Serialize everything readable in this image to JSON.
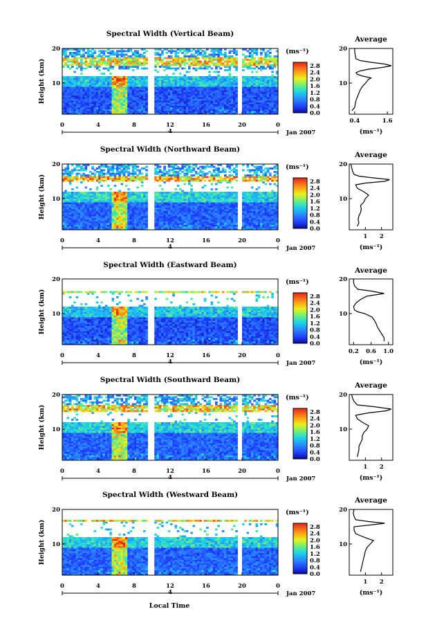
{
  "figure": {
    "x_axis_label": "Local Time",
    "y_axis_label": "Height (km)",
    "date_label": "Jan 2007",
    "day_label": "4",
    "colorbar_unit": "(ms⁻¹)",
    "profile_title": "Average",
    "profile_xlabel": "(ms⁻¹)"
  },
  "chart_data": [
    {
      "type": "heatmap",
      "title": "Spectral Width (Vertical Beam)",
      "xlabel": "Local Time",
      "ylabel": "Height (km)",
      "x_ticks": [
        "0",
        "4",
        "8",
        "12",
        "16",
        "20",
        "0"
      ],
      "x_range_hours": [
        0,
        24
      ],
      "ylim_km": [
        1,
        20
      ],
      "y_ticks": [
        "10",
        "20"
      ],
      "colorbar": {
        "unit": "(ms⁻¹)",
        "ticks": [
          "0.0",
          "0.4",
          "0.8",
          "1.2",
          "1.6",
          "2.0",
          "2.4",
          "2.8"
        ],
        "range": [
          0,
          3.0
        ]
      },
      "data_gaps_hours": [
        [
          9.5,
          10.2
        ],
        [
          19.5,
          20.0
        ]
      ],
      "features": {
        "tropopause_layer_km": [
          15,
          17.5
        ],
        "tropopause_width": 2.6,
        "no_echo_km": [
          12,
          14
        ],
        "background_width": 0.5,
        "convection_hours": [
          5.5,
          7
        ],
        "convection_top_km": 12
      }
    },
    {
      "type": "line",
      "title": "Average",
      "xlabel": "(ms⁻¹)",
      "ylabel": "",
      "x_ticks": [
        "0.4",
        "1.6"
      ],
      "xlim": [
        0.2,
        1.8
      ],
      "ylim": [
        1,
        20
      ],
      "y_ticks": [
        "10",
        "20"
      ],
      "profile": [
        [
          0.3,
          2
        ],
        [
          0.4,
          3
        ],
        [
          0.42,
          4
        ],
        [
          0.45,
          5
        ],
        [
          0.5,
          6
        ],
        [
          0.55,
          7
        ],
        [
          0.6,
          8
        ],
        [
          0.68,
          9
        ],
        [
          0.8,
          10
        ],
        [
          0.9,
          11
        ],
        [
          1.0,
          11.5
        ],
        [
          0.7,
          12
        ],
        [
          0.5,
          12.5
        ],
        [
          0.45,
          13
        ],
        [
          0.6,
          13.5
        ],
        [
          0.9,
          14
        ],
        [
          1.4,
          14.5
        ],
        [
          1.75,
          15
        ],
        [
          1.5,
          15.5
        ],
        [
          1.0,
          16
        ],
        [
          0.6,
          16.5
        ],
        [
          0.45,
          17
        ],
        [
          0.42,
          18
        ],
        [
          0.4,
          19
        ],
        [
          0.4,
          20
        ]
      ]
    },
    {
      "type": "heatmap",
      "title": "Spectral Width (Northward Beam)",
      "xlabel": "Local Time",
      "ylabel": "Height (km)",
      "x_ticks": [
        "0",
        "4",
        "8",
        "12",
        "16",
        "20",
        "0"
      ],
      "x_range_hours": [
        0,
        24
      ],
      "ylim_km": [
        1,
        20
      ],
      "y_ticks": [
        "10",
        "20"
      ],
      "colorbar": {
        "unit": "(ms⁻¹)",
        "ticks": [
          "0.0",
          "0.4",
          "0.8",
          "1.2",
          "1.6",
          "2.0",
          "2.4",
          "2.8"
        ],
        "range": [
          0,
          3.0
        ]
      },
      "data_gaps_hours": [
        [
          9.5,
          10.2
        ],
        [
          19.5,
          20.0
        ]
      ],
      "features": {
        "tropopause_layer_km": [
          15,
          16.5
        ],
        "tropopause_width": 2.8,
        "no_echo_km": [
          12,
          14.8
        ],
        "background_width": 0.6,
        "convection_hours": [
          5.5,
          7
        ],
        "convection_top_km": 12
      }
    },
    {
      "type": "line",
      "title": "Average",
      "xlabel": "(ms⁻¹)",
      "ylabel": "",
      "x_ticks": [
        "1",
        "2"
      ],
      "xlim": [
        0,
        2.7
      ],
      "ylim": [
        1,
        20
      ],
      "y_ticks": [
        "10",
        "20"
      ],
      "profile": [
        [
          0.5,
          2
        ],
        [
          0.6,
          3
        ],
        [
          0.55,
          4
        ],
        [
          0.6,
          5
        ],
        [
          0.7,
          6
        ],
        [
          0.75,
          7
        ],
        [
          0.7,
          8
        ],
        [
          0.9,
          9
        ],
        [
          1.0,
          10
        ],
        [
          1.2,
          11
        ],
        [
          0.9,
          12
        ],
        [
          0.5,
          13
        ],
        [
          0.4,
          14
        ],
        [
          1.0,
          14.5
        ],
        [
          2.2,
          15
        ],
        [
          2.5,
          15.5
        ],
        [
          1.5,
          16
        ],
        [
          0.6,
          16.5
        ],
        [
          0.3,
          17
        ],
        [
          0.2,
          18
        ],
        [
          0.15,
          19
        ],
        [
          0.1,
          20
        ]
      ]
    },
    {
      "type": "heatmap",
      "title": "Spectral Width (Eastward Beam)",
      "xlabel": "Local Time",
      "ylabel": "Height (km)",
      "x_ticks": [
        "0",
        "4",
        "8",
        "12",
        "16",
        "20",
        "0"
      ],
      "x_range_hours": [
        0,
        24
      ],
      "ylim_km": [
        1,
        20
      ],
      "y_ticks": [
        "10",
        "20"
      ],
      "colorbar": {
        "unit": "(ms⁻¹)",
        "ticks": [
          "0.0",
          "0.4",
          "0.8",
          "1.2",
          "1.6",
          "2.0",
          "2.4",
          "2.8"
        ],
        "range": [
          0,
          3.0
        ]
      },
      "data_gaps_hours": [
        [
          9.5,
          10.2
        ],
        [
          19.5,
          20.0
        ]
      ],
      "features": {
        "tropopause_layer_km": [
          16,
          16.5
        ],
        "tropopause_width": 2.4,
        "no_echo_km": [
          12,
          20
        ],
        "background_width": 0.5,
        "convection_hours": [
          5.5,
          7
        ],
        "convection_top_km": 12
      }
    },
    {
      "type": "line",
      "title": "Average",
      "xlabel": "(ms⁻¹)",
      "ylabel": "",
      "x_ticks": [
        "0.2",
        "0.6",
        "1.0"
      ],
      "xlim": [
        0.1,
        1.1
      ],
      "ylim": [
        1,
        20
      ],
      "y_ticks": [
        "10",
        "20"
      ],
      "profile": [
        [
          0.9,
          2
        ],
        [
          0.9,
          3
        ],
        [
          0.85,
          4
        ],
        [
          0.8,
          5
        ],
        [
          0.75,
          6
        ],
        [
          0.72,
          7
        ],
        [
          0.68,
          8
        ],
        [
          0.62,
          9
        ],
        [
          0.45,
          10
        ],
        [
          0.3,
          10.5
        ],
        [
          0.22,
          11
        ],
        [
          0.2,
          12
        ],
        [
          0.25,
          13
        ],
        [
          0.35,
          14
        ],
        [
          0.5,
          15
        ],
        [
          0.9,
          15.8
        ],
        [
          0.6,
          16.5
        ],
        [
          0.3,
          17
        ],
        [
          0.22,
          18
        ],
        [
          0.2,
          19
        ],
        [
          0.2,
          20
        ]
      ]
    },
    {
      "type": "heatmap",
      "title": "Spectral Width (Southward Beam)",
      "xlabel": "Local Time",
      "ylabel": "Height (km)",
      "x_ticks": [
        "0",
        "4",
        "8",
        "12",
        "16",
        "20",
        "0"
      ],
      "x_range_hours": [
        0,
        24
      ],
      "ylim_km": [
        1,
        20
      ],
      "y_ticks": [
        "10",
        "20"
      ],
      "colorbar": {
        "unit": "(ms⁻¹)",
        "ticks": [
          "0.0",
          "0.4",
          "0.8",
          "1.2",
          "1.6",
          "2.0",
          "2.4",
          "2.8"
        ],
        "range": [
          0,
          3.0
        ]
      },
      "data_gaps_hours": [
        [
          9.5,
          10.2
        ],
        [
          19.5,
          20.0
        ]
      ],
      "features": {
        "tropopause_layer_km": [
          15.2,
          16.8
        ],
        "tropopause_width": 2.7,
        "no_echo_km": [
          12,
          15
        ],
        "background_width": 0.6,
        "convection_hours": [
          5.5,
          7
        ],
        "convection_top_km": 12
      }
    },
    {
      "type": "line",
      "title": "Average",
      "xlabel": "(ms⁻¹)",
      "ylabel": "",
      "x_ticks": [
        "1",
        "2"
      ],
      "xlim": [
        0,
        2.7
      ],
      "ylim": [
        1,
        20
      ],
      "y_ticks": [
        "10",
        "20"
      ],
      "profile": [
        [
          0.5,
          2
        ],
        [
          0.55,
          3
        ],
        [
          0.6,
          4
        ],
        [
          0.6,
          5
        ],
        [
          0.7,
          6
        ],
        [
          0.8,
          7
        ],
        [
          0.8,
          8
        ],
        [
          0.9,
          9
        ],
        [
          1.1,
          10
        ],
        [
          1.2,
          11
        ],
        [
          0.8,
          12
        ],
        [
          0.5,
          13
        ],
        [
          0.4,
          14
        ],
        [
          1.2,
          14.7
        ],
        [
          2.3,
          15.3
        ],
        [
          2.6,
          15.8
        ],
        [
          1.5,
          16.5
        ],
        [
          0.5,
          17
        ],
        [
          0.3,
          18
        ],
        [
          0.2,
          19
        ],
        [
          0.15,
          20
        ]
      ]
    },
    {
      "type": "heatmap",
      "title": "Spectral Width (Westward Beam)",
      "xlabel": "Local Time",
      "ylabel": "Height (km)",
      "x_ticks": [
        "0",
        "4",
        "8",
        "12",
        "16",
        "20",
        "0"
      ],
      "x_range_hours": [
        0,
        24
      ],
      "ylim_km": [
        1,
        20
      ],
      "y_ticks": [
        "10",
        "20"
      ],
      "colorbar": {
        "unit": "(ms⁻¹)",
        "ticks": [
          "0.0",
          "0.4",
          "0.8",
          "1.2",
          "1.6",
          "2.0",
          "2.4",
          "2.8"
        ],
        "range": [
          0,
          3.0
        ]
      },
      "data_gaps_hours": [
        [
          9.5,
          10.2
        ],
        [
          19.5,
          20.0
        ]
      ],
      "features": {
        "tropopause_layer_km": [
          16.5,
          17
        ],
        "tropopause_width": 2.6,
        "no_echo_km": [
          12,
          20
        ],
        "background_width": 0.6,
        "convection_hours": [
          5.5,
          7
        ],
        "convection_top_km": 12
      }
    },
    {
      "type": "line",
      "title": "Average",
      "xlabel": "(ms⁻¹)",
      "ylabel": "",
      "x_ticks": [
        "1",
        "2"
      ],
      "xlim": [
        0,
        2.7
      ],
      "ylim": [
        1,
        20
      ],
      "y_ticks": [
        "10",
        "20"
      ],
      "profile": [
        [
          0.7,
          2
        ],
        [
          0.75,
          3
        ],
        [
          0.8,
          4
        ],
        [
          0.85,
          5
        ],
        [
          0.9,
          6
        ],
        [
          0.95,
          7
        ],
        [
          1.0,
          8
        ],
        [
          1.1,
          9
        ],
        [
          1.3,
          10
        ],
        [
          1.5,
          11
        ],
        [
          0.9,
          12
        ],
        [
          0.4,
          13
        ],
        [
          0.3,
          14
        ],
        [
          0.3,
          15
        ],
        [
          1.5,
          15.6
        ],
        [
          2.2,
          16
        ],
        [
          1.2,
          16.5
        ],
        [
          0.4,
          17
        ],
        [
          0.3,
          18
        ],
        [
          0.25,
          19
        ],
        [
          0.3,
          20
        ]
      ]
    }
  ]
}
